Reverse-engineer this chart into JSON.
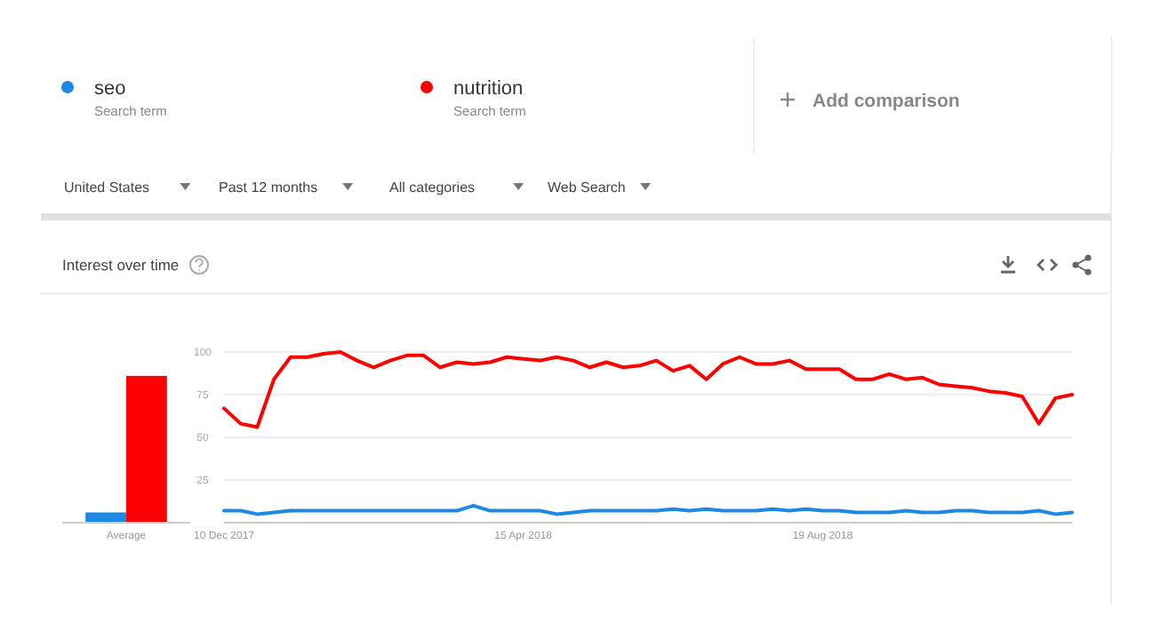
{
  "chart_data": [
    {
      "type": "other",
      "title": "Interest over time",
      "annotations": [
        "Search term",
        "Search term",
        "Add comparison",
        "United States",
        "Past 12 months",
        "All categories",
        "Web Search"
      ]
    },
    {
      "type": "bar",
      "categories": [
        "Average"
      ],
      "ylim": [
        0,
        100
      ],
      "tick_labels": "x",
      "series": [
        {
          "color": "#1e88e5",
          "values": [
            6
          ]
        },
        {
          "color": "#ff0000",
          "values": [
            86
          ]
        }
      ]
    },
    {
      "type": "line",
      "ylim": [
        0,
        100
      ],
      "yticks": [
        25,
        50,
        75,
        100
      ],
      "grid": "y",
      "legend": "top",
      "marker": "none",
      "line_style": "solid",
      "xlim": [
        "2017-12-10",
        "2018-12-02"
      ],
      "xticks": [
        {
          "value": "2017-12-10",
          "label": "10 Dec 2017"
        },
        {
          "value": "2018-04-15",
          "label": "15 Apr 2018"
        },
        {
          "value": "2018-08-19",
          "label": "19 Aug 2018"
        }
      ],
      "x": [
        "2017-12-10",
        "2017-12-17",
        "2017-12-24",
        "2017-12-31",
        "2018-01-07",
        "2018-01-14",
        "2018-01-21",
        "2018-01-28",
        "2018-02-04",
        "2018-02-11",
        "2018-02-18",
        "2018-02-25",
        "2018-03-04",
        "2018-03-11",
        "2018-03-18",
        "2018-03-25",
        "2018-04-01",
        "2018-04-08",
        "2018-04-15",
        "2018-04-22",
        "2018-04-29",
        "2018-05-06",
        "2018-05-13",
        "2018-05-20",
        "2018-05-27",
        "2018-06-03",
        "2018-06-10",
        "2018-06-17",
        "2018-06-24",
        "2018-07-01",
        "2018-07-08",
        "2018-07-15",
        "2018-07-22",
        "2018-07-29",
        "2018-08-05",
        "2018-08-12",
        "2018-08-19",
        "2018-08-26",
        "2018-09-02",
        "2018-09-09",
        "2018-09-16",
        "2018-09-23",
        "2018-09-30",
        "2018-10-07",
        "2018-10-14",
        "2018-10-21",
        "2018-10-28",
        "2018-11-04",
        "2018-11-11",
        "2018-11-18",
        "2018-11-25",
        "2018-12-02"
      ],
      "series": [
        {
          "name": "seo",
          "color": "#1e88e5",
          "values": [
            7,
            7,
            5,
            6,
            7,
            7,
            7,
            7,
            7,
            7,
            7,
            7,
            7,
            7,
            7,
            10,
            7,
            7,
            7,
            7,
            5,
            6,
            7,
            7,
            7,
            7,
            7,
            8,
            7,
            8,
            7,
            7,
            7,
            8,
            7,
            8,
            7,
            7,
            6,
            6,
            6,
            7,
            6,
            6,
            7,
            7,
            6,
            6,
            6,
            7,
            5,
            6
          ]
        },
        {
          "name": "nutrition",
          "color": "#ff0000",
          "values": [
            67,
            58,
            56,
            84,
            97,
            97,
            99,
            100,
            95,
            91,
            95,
            98,
            98,
            91,
            94,
            93,
            94,
            97,
            96,
            95,
            97,
            95,
            91,
            94,
            91,
            92,
            95,
            89,
            92,
            84,
            93,
            97,
            93,
            93,
            95,
            90,
            90,
            90,
            84,
            84,
            87,
            84,
            85,
            81,
            80,
            79,
            77,
            76,
            74,
            58,
            73,
            75
          ]
        }
      ]
    }
  ]
}
